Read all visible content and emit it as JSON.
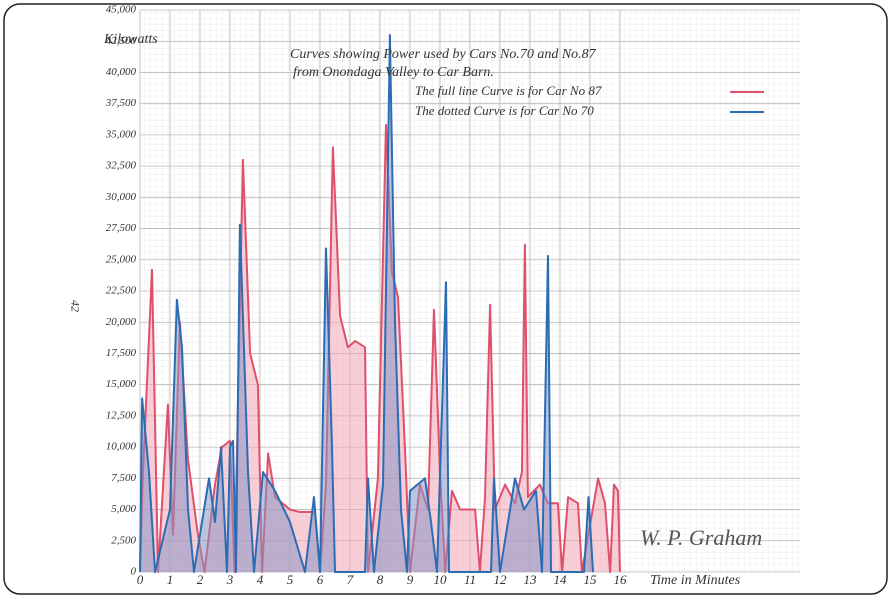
{
  "chart_data": {
    "type": "area",
    "title": "Curves showing Power used by Cars No.70 and No.87",
    "subtitle": "from Onondaga Valley to Car Barn.",
    "y_label": "Kilowatts",
    "x_label": "Time in Minutes",
    "annotations": [
      "42",
      "W. P. Graham"
    ],
    "xlim": [
      0,
      22
    ],
    "xticks": [
      0,
      1,
      2,
      3,
      4,
      5,
      6,
      7,
      8,
      9,
      10,
      11,
      12,
      13,
      14,
      15,
      16
    ],
    "ylim": [
      0,
      45000
    ],
    "yticks": [
      {
        "value": 0,
        "label": "0"
      },
      {
        "value": 2500,
        "label": "2,500"
      },
      {
        "value": 5000,
        "label": "5,000"
      },
      {
        "value": 7500,
        "label": "7,500"
      },
      {
        "value": 10000,
        "label": "10,000"
      },
      {
        "value": 12500,
        "label": "12,500"
      },
      {
        "value": 15000,
        "label": "15,000"
      },
      {
        "value": 17500,
        "label": "17,500"
      },
      {
        "value": 20000,
        "label": "20,000"
      },
      {
        "value": 22500,
        "label": "22,500"
      },
      {
        "value": 25000,
        "label": "25,000"
      },
      {
        "value": 27500,
        "label": "27,500"
      },
      {
        "value": 30000,
        "label": "30,000"
      },
      {
        "value": 32500,
        "label": "32,500"
      },
      {
        "value": 35000,
        "label": "35,000"
      },
      {
        "value": 37500,
        "label": "37,500"
      },
      {
        "value": 40000,
        "label": "40,000"
      },
      {
        "value": 42500,
        "label": "42,500"
      },
      {
        "value": 45000,
        "label": "45,000"
      }
    ],
    "grid": true,
    "series": [
      {
        "name": "The full line Curve is for Car No 87",
        "color": "#e0506c",
        "fill": "#f2a6b6",
        "x": [
          0,
          0.1,
          0.4,
          0.6,
          0.93,
          1.1,
          1.33,
          1.6,
          1.93,
          2.15,
          2.5,
          2.73,
          3.0,
          3.15,
          3.43,
          3.67,
          3.93,
          4.07,
          4.27,
          4.5,
          5.0,
          5.33,
          5.83,
          6.0,
          6.2,
          6.43,
          6.67,
          6.93,
          7.17,
          7.5,
          7.6,
          7.93,
          8.2,
          8.4,
          8.6,
          8.83,
          9.0,
          9.33,
          9.6,
          9.8,
          10.0,
          10.17,
          10.4,
          10.67,
          11.17,
          11.33,
          11.5,
          11.67,
          11.83,
          12.17,
          12.5,
          12.73,
          12.83,
          12.93,
          13.33,
          13.6,
          13.93,
          14.07,
          14.27,
          14.6,
          14.73,
          15.27,
          15.5,
          15.67,
          15.8,
          15.93,
          16.0
        ],
        "values": [
          0,
          8000,
          24200,
          0,
          13400,
          3000,
          20000,
          9000,
          3000,
          0,
          7000,
          10000,
          10500,
          0,
          33000,
          17500,
          15000,
          0,
          9500,
          6000,
          5000,
          4800,
          4800,
          0,
          7000,
          34000,
          20500,
          18000,
          18500,
          18000,
          0,
          7500,
          35800,
          24000,
          22000,
          10000,
          0,
          7000,
          5000,
          21000,
          8000,
          0,
          6500,
          5000,
          5000,
          0,
          6000,
          21400,
          5000,
          7000,
          5500,
          8000,
          26200,
          6000,
          7000,
          5500,
          5500,
          0,
          6000,
          5500,
          0,
          7500,
          5500,
          0,
          7000,
          6500,
          0
        ]
      },
      {
        "name": "The dotted Curve is for Car No 70",
        "color": "#2a6db5",
        "fill": "#8b93c4",
        "x": [
          0,
          0.07,
          0.3,
          0.5,
          1.0,
          1.23,
          1.4,
          1.6,
          1.8,
          2.3,
          2.5,
          2.7,
          2.9,
          3.0,
          3.1,
          3.2,
          3.33,
          3.6,
          3.8,
          4.1,
          4.5,
          5.0,
          5.5,
          5.8,
          6.0,
          6.2,
          6.4,
          6.5,
          7.5,
          7.6,
          7.8,
          8.1,
          8.33,
          8.5,
          8.7,
          8.9,
          9.0,
          9.5,
          9.7,
          9.9,
          10.2,
          10.3,
          11.7,
          11.8,
          12.0,
          12.5,
          12.8,
          13.2,
          13.4,
          13.6,
          13.7,
          14.8,
          14.95,
          15.1
        ],
        "values": [
          0,
          13900,
          8000,
          0,
          5000,
          21800,
          18000,
          5000,
          0,
          7500,
          4000,
          10000,
          0,
          10000,
          10500,
          0,
          27800,
          8000,
          0,
          8000,
          6500,
          4000,
          0,
          6000,
          0,
          25900,
          10000,
          0,
          0,
          7500,
          0,
          7000,
          43000,
          20000,
          5000,
          0,
          6500,
          7500,
          4000,
          0,
          23200,
          0,
          0,
          7500,
          0,
          7500,
          5000,
          6500,
          0,
          25300,
          0,
          0,
          6000,
          0
        ]
      }
    ]
  }
}
